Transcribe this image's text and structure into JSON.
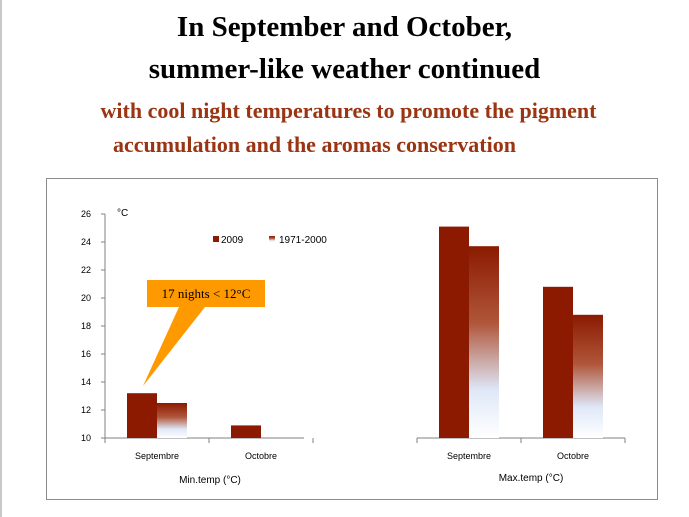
{
  "slide": {
    "title_line1": "In September and October,",
    "title_line2": "summer-like weather continued",
    "subtitle_line1": "with cool night temperatures to promote the pigment",
    "subtitle_line2": "accumulation and the aromas conservation"
  },
  "chart_data": {
    "type": "bar",
    "title": "",
    "unit_label": "°C",
    "ylim": [
      10,
      26
    ],
    "yticks": [
      10,
      12,
      14,
      16,
      18,
      20,
      22,
      24,
      26
    ],
    "grid": false,
    "legend_placement": "top-left",
    "groups": [
      {
        "label": "Min.temp (°C)",
        "categories": [
          "Septembre",
          "Octobre"
        ],
        "series": [
          {
            "name": "2009",
            "values": [
              13.2,
              10.9
            ]
          },
          {
            "name": "1971-2000",
            "values": [
              12.5,
              null
            ]
          }
        ]
      },
      {
        "label": "Max.temp (°C)",
        "categories": [
          "Septembre",
          "Octobre"
        ],
        "series": [
          {
            "name": "2009",
            "values": [
              25.1,
              20.8
            ]
          },
          {
            "name": "1971-2000",
            "values": [
              23.7,
              18.8
            ]
          }
        ]
      }
    ],
    "colors": {
      "series_2009": "#8b1a00",
      "series_1971_2000_top": "#8b1a00",
      "series_1971_2000_bottom": "#ffffff",
      "callout": "#ff9900"
    },
    "annotation": "17 nights < 12°C"
  }
}
